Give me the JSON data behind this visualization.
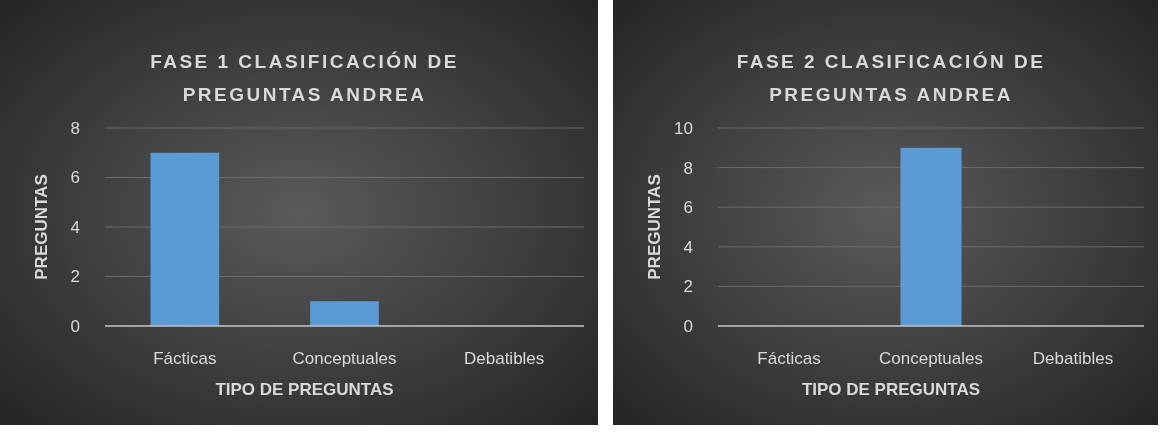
{
  "chart_data": [
    {
      "type": "bar",
      "title": "FASE 1 CLASIFICACIÓN DE PREGUNTAS ANDREA",
      "xlabel": "TIPO DE PREGUNTAS",
      "ylabel": "PREGUNTAS",
      "categories": [
        "Fácticas",
        "Conceptuales",
        "Debatibles"
      ],
      "values": [
        7,
        1,
        0
      ],
      "color": "#5b9bd5",
      "ylim": [
        0,
        8
      ],
      "yticks": [
        0,
        2,
        4,
        6,
        8
      ],
      "grid": "y"
    },
    {
      "type": "bar",
      "title": "FASE 2 CLASIFICACIÓN DE PREGUNTAS ANDREA",
      "xlabel": "TIPO DE PREGUNTAS",
      "ylabel": "PREGUNTAS",
      "categories": [
        "Fácticas",
        "Conceptuales",
        "Debatibles"
      ],
      "values": [
        0,
        9,
        0
      ],
      "color": "#5b9bd5",
      "ylim": [
        0,
        10
      ],
      "yticks": [
        0,
        2,
        4,
        6,
        8,
        10
      ],
      "grid": "y"
    }
  ]
}
